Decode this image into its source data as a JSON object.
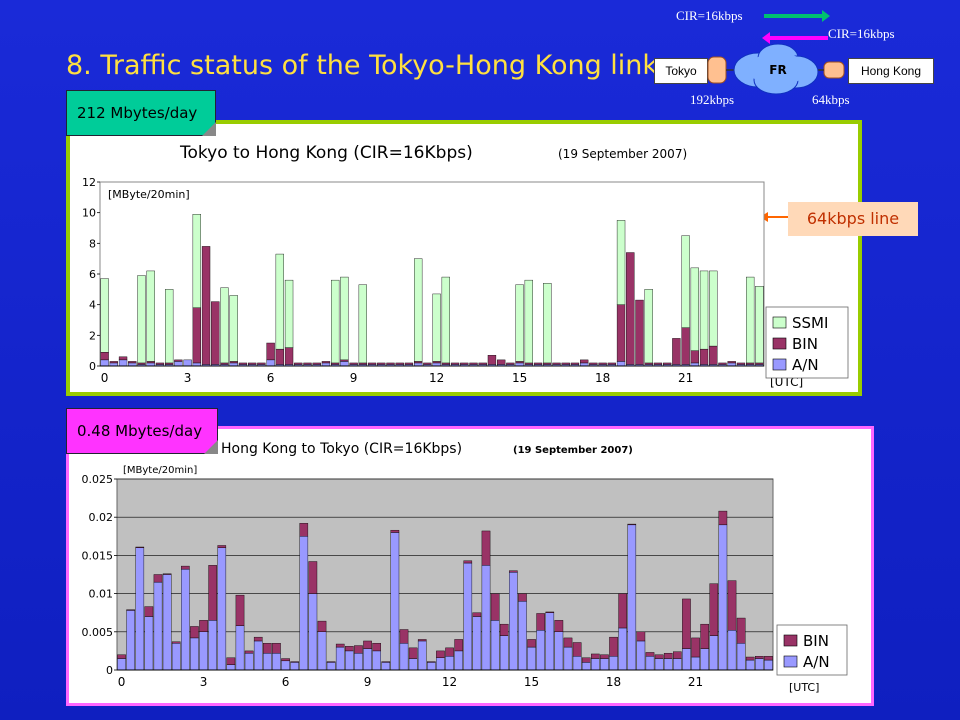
{
  "slide_title": "8.  Traffic status of the Tokyo-Hong Kong link",
  "network": {
    "cir_top": "CIR=16kbps",
    "cir_right": "CIR=16kbps",
    "left_node": "Tokyo",
    "cloud": "FR",
    "right_node": "Hong Kong",
    "left_speed": "192kbps",
    "right_speed": "64kbps"
  },
  "line_label": "64kbps line",
  "colors": {
    "ssmi": "#ccffcc",
    "bin": "#993366",
    "an": "#9999ff",
    "panel1_border": "#99cc00",
    "panel2_border": "#ff66ff",
    "callout1": "#00cc99",
    "callout2": "#ff33ff",
    "plot_bg": "#c0c0c0"
  },
  "chart_data": [
    {
      "type": "bar",
      "callout": "212 Mbytes/day",
      "title": "Tokyo to Hong Kong (CIR=16Kbps)",
      "subtitle": "(19 September 2007)",
      "ylabel": "[MByte/20min]",
      "xlabel": "[UTC]",
      "ylim": [
        0,
        12
      ],
      "yticks": [
        "0",
        "2",
        "4",
        "6",
        "8",
        "10",
        "12"
      ],
      "xticks": [
        "0",
        "3",
        "6",
        "9",
        "12",
        "15",
        "18",
        "21"
      ],
      "grid": false,
      "legend": "bottom-right",
      "stacked": true,
      "series": [
        {
          "name": "A/N",
          "values": [
            0.4,
            0.2,
            0.4,
            0.2,
            0.1,
            0.2,
            0.1,
            0.1,
            0.3,
            0.4,
            0.2,
            0.1,
            0.1,
            0.1,
            0.2,
            0.1,
            0.1,
            0.1,
            0.4,
            0.1,
            0.1,
            0.1,
            0.1,
            0.1,
            0.2,
            0.1,
            0.3,
            0.1,
            0.1,
            0.1,
            0.1,
            0.1,
            0.1,
            0.1,
            0.2,
            0.1,
            0.2,
            0.1,
            0.1,
            0.1,
            0.1,
            0.1,
            0.1,
            0.1,
            0.1,
            0.2,
            0.1,
            0.1,
            0.1,
            0.1,
            0.1,
            0.1,
            0.2,
            0.1,
            0.1,
            0.1,
            0.3,
            0.1,
            0.1,
            0.1,
            0.1,
            0.1,
            0.1,
            0.1,
            0.2,
            0.1,
            0.1,
            0.1,
            0.2,
            0.1,
            0.1,
            0.1
          ]
        },
        {
          "name": "BIN",
          "values": [
            0.5,
            0.1,
            0.2,
            0.1,
            0.1,
            0.1,
            0.1,
            0.1,
            0.1,
            0.0,
            3.6,
            7.7,
            4.1,
            0.1,
            0.1,
            0.1,
            0.1,
            0.1,
            1.1,
            1.0,
            1.1,
            0.1,
            0.1,
            0.1,
            0.1,
            0.1,
            0.1,
            0.1,
            0.1,
            0.1,
            0.1,
            0.1,
            0.1,
            0.1,
            0.1,
            0.1,
            0.1,
            0.1,
            0.1,
            0.1,
            0.1,
            0.1,
            0.6,
            0.3,
            0.1,
            0.1,
            0.1,
            0.1,
            0.1,
            0.1,
            0.1,
            0.1,
            0.2,
            0.1,
            0.1,
            0.1,
            3.7,
            7.3,
            4.2,
            0.1,
            0.1,
            0.1,
            1.7,
            2.4,
            0.8,
            1.0,
            1.2,
            0.1,
            0.1,
            0.1,
            0.1,
            0.1
          ]
        },
        {
          "name": "SSMI",
          "values": [
            4.8,
            0,
            0,
            0,
            5.7,
            5.9,
            0,
            4.8,
            0,
            0,
            6.1,
            0,
            0,
            4.9,
            4.3,
            0,
            0,
            0,
            0,
            6.2,
            4.4,
            0,
            0,
            0,
            0,
            5.4,
            5.4,
            0,
            5.1,
            0,
            0,
            0,
            0,
            0,
            6.7,
            0,
            4.4,
            5.6,
            0,
            0,
            0,
            0,
            0,
            0,
            0,
            5.0,
            5.4,
            0,
            5.2,
            0,
            0,
            0,
            0,
            0,
            0,
            0,
            5.5,
            0,
            0,
            4.8,
            0,
            0,
            0,
            6.0,
            5.4,
            5.1,
            4.9,
            0,
            0,
            0,
            5.6,
            5.0
          ]
        }
      ]
    },
    {
      "type": "bar",
      "callout": "0.48 Mbytes/day",
      "title": "Hong Kong to Tokyo (CIR=16Kbps)",
      "subtitle": "(19 September 2007)",
      "ylabel": "[MByte/20min]",
      "xlabel": "[UTC]",
      "ylim": [
        0,
        0.025
      ],
      "yticks": [
        "0",
        "0.005",
        "0.01",
        "0.015",
        "0.02",
        "0.025"
      ],
      "xticks": [
        "0",
        "3",
        "6",
        "9",
        "12",
        "15",
        "18",
        "21"
      ],
      "grid": true,
      "legend": "bottom-right",
      "stacked": true,
      "series": [
        {
          "name": "A/N",
          "values": [
            0.0015,
            0.0078,
            0.016,
            0.007,
            0.0115,
            0.0125,
            0.0035,
            0.0132,
            0.0042,
            0.005,
            0.0065,
            0.016,
            0.0007,
            0.0058,
            0.0022,
            0.0038,
            0.0022,
            0.0022,
            0.0012,
            0.001,
            0.0175,
            0.01,
            0.005,
            0.001,
            0.003,
            0.0025,
            0.0022,
            0.0028,
            0.0025,
            0.001,
            0.018,
            0.0035,
            0.0015,
            0.0038,
            0.001,
            0.0016,
            0.0018,
            0.0025,
            0.014,
            0.007,
            0.0137,
            0.0065,
            0.0045,
            0.0128,
            0.009,
            0.003,
            0.0052,
            0.0075,
            0.005,
            0.003,
            0.0018,
            0.001,
            0.0015,
            0.0015,
            0.0018,
            0.0055,
            0.019,
            0.0038,
            0.0018,
            0.0015,
            0.0015,
            0.0015,
            0.0028,
            0.0017,
            0.0028,
            0.0045,
            0.019,
            0.0052,
            0.0035,
            0.0013,
            0.0015,
            0.0013
          ]
        },
        {
          "name": "BIN",
          "values": [
            0.0005,
            0.0001,
            0.0001,
            0.0013,
            0.001,
            0.0001,
            0.0002,
            0.0004,
            0.0015,
            0.0015,
            0.0072,
            0.0003,
            0.0009,
            0.004,
            0.0003,
            0.0005,
            0.0013,
            0.0013,
            0.0003,
            0.0001,
            0.0017,
            0.0042,
            0.0014,
            0.0001,
            0.0004,
            0.0006,
            0.001,
            0.001,
            0.001,
            0.0001,
            0.0003,
            0.0018,
            0.0014,
            0.0002,
            0.0001,
            0.0009,
            0.0011,
            0.0015,
            0.0003,
            0.0005,
            0.0045,
            0.0035,
            0.0015,
            0.0002,
            0.001,
            0.001,
            0.0022,
            0.0001,
            0.0015,
            0.0012,
            0.0018,
            0.0006,
            0.0006,
            0.0005,
            0.0025,
            0.0045,
            0.0001,
            0.0012,
            0.0005,
            0.0005,
            0.0007,
            0.0009,
            0.0065,
            0.0025,
            0.0032,
            0.0068,
            0.0018,
            0.0065,
            0.0033,
            0.0004,
            0.0003,
            0.0005
          ]
        }
      ]
    }
  ]
}
